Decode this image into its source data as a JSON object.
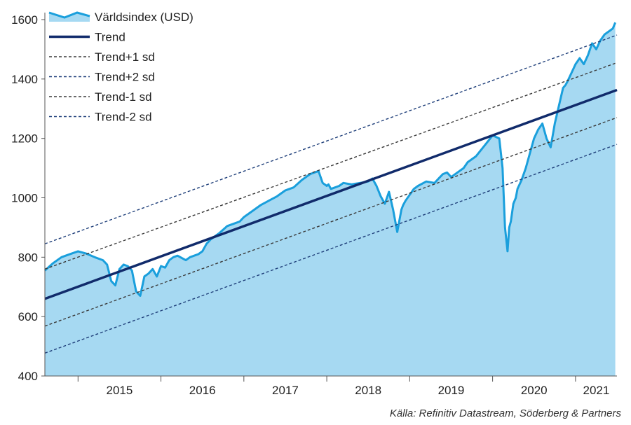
{
  "chart_data": {
    "type": "line",
    "source": "Källa: Refinitiv Datastream, Söderberg & Partners",
    "ylim": [
      400,
      1600
    ],
    "y_ticks": [
      400,
      600,
      800,
      1000,
      1200,
      1400,
      1600
    ],
    "x_range": [
      2014.6,
      2021.5
    ],
    "x_tick_labels": [
      "2015",
      "2016",
      "2017",
      "2018",
      "2019",
      "2020",
      "2021"
    ],
    "grid": false,
    "legend_position": "top-left",
    "colors": {
      "index_fill": "#a6d9f2",
      "index_line": "#1a9fdc",
      "trend": "#112b6b",
      "sd1": "#3a3a3a",
      "sd2": "#1f3f7a",
      "axis": "#555555"
    },
    "series": [
      {
        "name": "Världsindex (USD)",
        "style": "area",
        "x": [
          2014.6,
          2014.7,
          2014.8,
          2014.9,
          2015.0,
          2015.1,
          2015.2,
          2015.3,
          2015.35,
          2015.4,
          2015.45,
          2015.5,
          2015.55,
          2015.6,
          2015.65,
          2015.7,
          2015.75,
          2015.8,
          2015.85,
          2015.9,
          2015.95,
          2016.0,
          2016.05,
          2016.1,
          2016.15,
          2016.2,
          2016.3,
          2016.35,
          2016.4,
          2016.45,
          2016.5,
          2016.55,
          2016.6,
          2016.7,
          2016.8,
          2016.9,
          2016.95,
          2017.0,
          2017.1,
          2017.2,
          2017.3,
          2017.4,
          2017.5,
          2017.6,
          2017.7,
          2017.8,
          2017.9,
          2017.95,
          2018.0,
          2018.02,
          2018.05,
          2018.1,
          2018.15,
          2018.2,
          2018.3,
          2018.4,
          2018.5,
          2018.55,
          2018.6,
          2018.65,
          2018.7,
          2018.75,
          2018.8,
          2018.85,
          2018.9,
          2018.92,
          2018.95,
          2019.0,
          2019.05,
          2019.1,
          2019.2,
          2019.3,
          2019.35,
          2019.4,
          2019.45,
          2019.5,
          2019.6,
          2019.65,
          2019.7,
          2019.8,
          2019.9,
          2020.0,
          2020.08,
          2020.12,
          2020.15,
          2020.18,
          2020.2,
          2020.22,
          2020.25,
          2020.28,
          2020.3,
          2020.35,
          2020.4,
          2020.45,
          2020.5,
          2020.55,
          2020.6,
          2020.65,
          2020.7,
          2020.75,
          2020.8,
          2020.85,
          2020.88,
          2020.9,
          2020.95,
          2021.0,
          2021.05,
          2021.1,
          2021.15,
          2021.2,
          2021.25,
          2021.3,
          2021.35,
          2021.4,
          2021.45,
          2021.48
        ],
        "values": [
          755,
          780,
          800,
          810,
          820,
          812,
          800,
          790,
          775,
          720,
          705,
          760,
          775,
          770,
          755,
          685,
          670,
          735,
          745,
          760,
          735,
          770,
          765,
          790,
          800,
          805,
          790,
          800,
          805,
          810,
          820,
          845,
          860,
          880,
          905,
          915,
          920,
          935,
          955,
          975,
          990,
          1005,
          1025,
          1035,
          1060,
          1080,
          1090,
          1050,
          1040,
          1045,
          1030,
          1035,
          1040,
          1050,
          1045,
          1050,
          1055,
          1065,
          1040,
          1005,
          980,
          1020,
          960,
          885,
          960,
          975,
          990,
          1010,
          1030,
          1040,
          1055,
          1050,
          1065,
          1080,
          1085,
          1070,
          1090,
          1100,
          1120,
          1140,
          1175,
          1210,
          1200,
          1100,
          900,
          820,
          900,
          920,
          980,
          1000,
          1030,
          1060,
          1100,
          1150,
          1200,
          1230,
          1250,
          1200,
          1170,
          1250,
          1310,
          1370,
          1380,
          1390,
          1420,
          1450,
          1470,
          1450,
          1480,
          1520,
          1500,
          1530,
          1550,
          1560,
          1570,
          1590
        ]
      },
      {
        "name": "Trend",
        "style": "solid",
        "x": [
          2014.6,
          2021.5
        ],
        "values": [
          660,
          1363
        ]
      },
      {
        "name": "Trend+1 sd",
        "style": "dashed",
        "x": [
          2014.6,
          2021.5
        ],
        "values": [
          760,
          1455
        ]
      },
      {
        "name": "Trend+2 sd",
        "style": "dashed",
        "x": [
          2014.6,
          2021.5
        ],
        "values": [
          845,
          1548
        ]
      },
      {
        "name": "Trend-1 sd",
        "style": "dashed",
        "x": [
          2014.6,
          2021.5
        ],
        "values": [
          568,
          1270
        ]
      },
      {
        "name": "Trend-2 sd",
        "style": "dashed",
        "x": [
          2014.6,
          2021.5
        ],
        "values": [
          477,
          1180
        ]
      }
    ]
  }
}
